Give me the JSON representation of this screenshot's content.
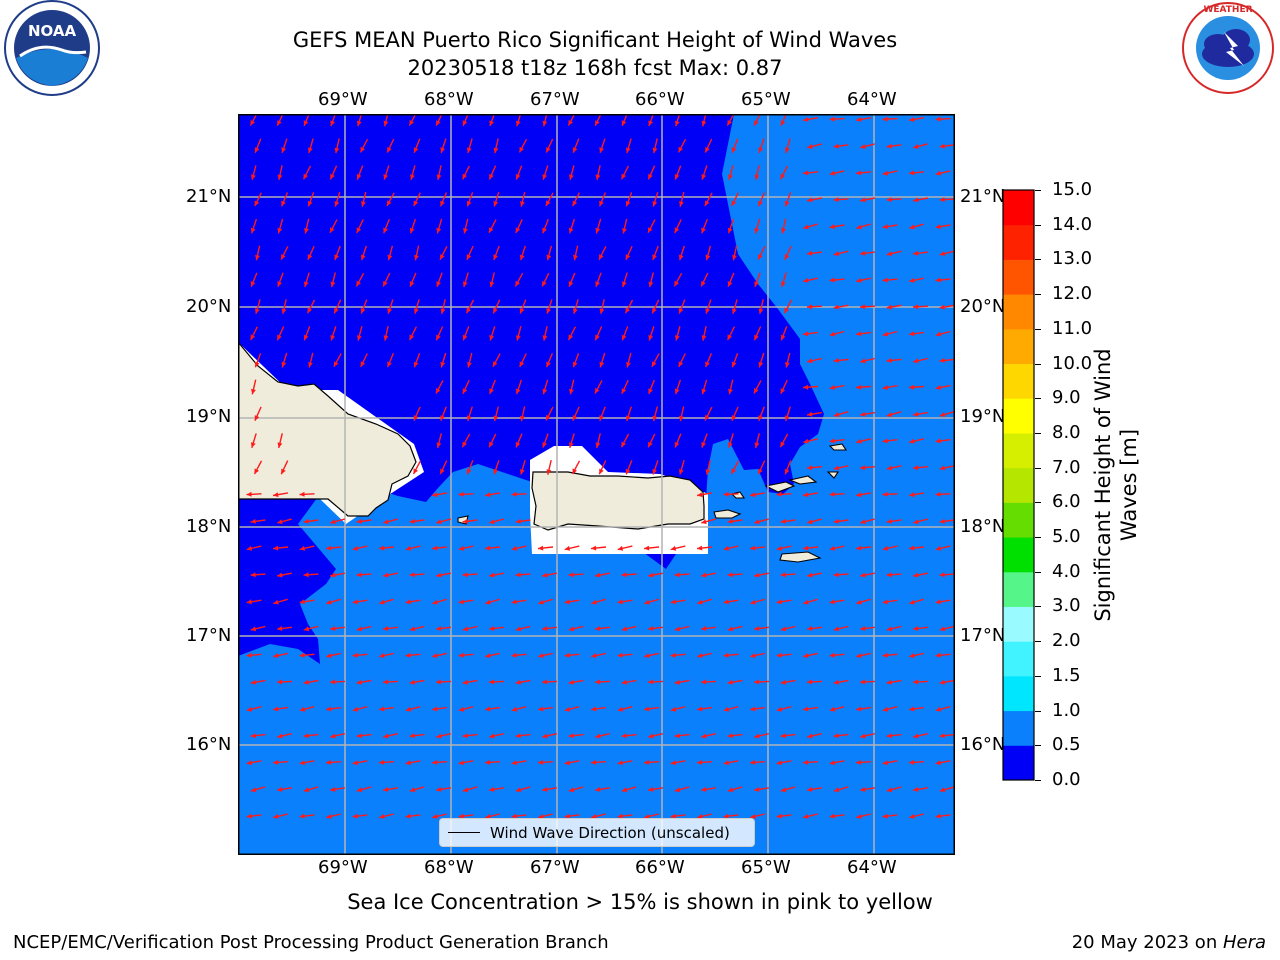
{
  "title": {
    "line1": "GEFS MEAN Puerto Rico Significant Height of Wind Waves",
    "line2": "20230518 t18z 168h fcst   Max: 0.87"
  },
  "logos": {
    "left": "NOAA",
    "right": "NATIONAL WEATHER SERVICE"
  },
  "map": {
    "lon_labels": [
      "69°W",
      "68°W",
      "67°W",
      "66°W",
      "65°W",
      "64°W"
    ],
    "lat_labels": [
      "21°N",
      "20°N",
      "19°N",
      "18°N",
      "17°N",
      "16°N"
    ],
    "lon_range": [
      -70.0,
      -63.25
    ],
    "lat_range": [
      15.0,
      21.75
    ],
    "colors": {
      "low": "#0000f6",
      "mid": "#0b80fc",
      "land": "#efecdc",
      "arrow": "#ff1a1a"
    },
    "legend_label": "Wind Wave Direction (unscaled)"
  },
  "colorbar": {
    "label": "Significant Height of Wind Waves [m]",
    "ticks": [
      "0.0",
      "0.5",
      "1.0",
      "1.5",
      "2.0",
      "3.0",
      "4.0",
      "5.0",
      "6.0",
      "7.0",
      "8.0",
      "9.0",
      "10.0",
      "11.0",
      "12.0",
      "13.0",
      "14.0",
      "15.0"
    ],
    "colors": [
      "#0000f6",
      "#0b80fc",
      "#00e6ff",
      "#40f3ff",
      "#99fbff",
      "#55f58a",
      "#00e000",
      "#66dd00",
      "#b4e600",
      "#d6ee00",
      "#ffff00",
      "#ffd700",
      "#ffaa00",
      "#ff8800",
      "#ff5500",
      "#ff2200",
      "#ff0000"
    ]
  },
  "note": "Sea Ice Concentration > 15% is shown in pink to yellow",
  "footer": {
    "left": "NCEP/EMC/Verification Post Processing Product Generation Branch",
    "right_prefix": "20 May 2023 on ",
    "right_host": "Hera"
  }
}
